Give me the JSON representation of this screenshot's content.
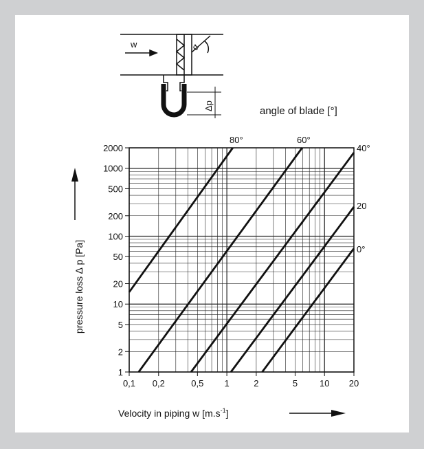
{
  "diagram": {
    "flow_label": "w",
    "angle_label": "α",
    "dp_label": "Δp"
  },
  "legend_title": "angle of blade  [°]",
  "chart_data": {
    "type": "line",
    "title": "",
    "xlabel_text": "Velocity in piping  w  [m.s",
    "xlabel_sup": "-1",
    "xlabel_close": "]",
    "ylabel": "pressure loss ∆ p  [Pa]",
    "xscale": "log",
    "yscale": "log",
    "xlim": [
      0.1,
      20
    ],
    "ylim": [
      1,
      2000
    ],
    "grid": true,
    "x_ticks": [
      {
        "value": 0.1,
        "label": "0,1"
      },
      {
        "value": 0.2,
        "label": "0,2"
      },
      {
        "value": 0.5,
        "label": "0,5"
      },
      {
        "value": 1,
        "label": "1"
      },
      {
        "value": 2,
        "label": "2"
      },
      {
        "value": 5,
        "label": "5"
      },
      {
        "value": 10,
        "label": "10"
      },
      {
        "value": 20,
        "label": "20"
      }
    ],
    "y_ticks": [
      {
        "value": 1,
        "label": "1"
      },
      {
        "value": 2,
        "label": "2"
      },
      {
        "value": 5,
        "label": "5"
      },
      {
        "value": 10,
        "label": "10"
      },
      {
        "value": 20,
        "label": "20"
      },
      {
        "value": 50,
        "label": "50"
      },
      {
        "value": 100,
        "label": "100"
      },
      {
        "value": 200,
        "label": "200"
      },
      {
        "value": 500,
        "label": "500"
      },
      {
        "value": 1000,
        "label": "1000"
      },
      {
        "value": 2000,
        "label": "2000"
      }
    ],
    "series": [
      {
        "name": "80°",
        "x": [
          0.1,
          1.15
        ],
        "y": [
          15,
          2000
        ]
      },
      {
        "name": "60°",
        "x": [
          0.125,
          5.9
        ],
        "y": [
          1,
          2000
        ]
      },
      {
        "name": "40°",
        "x": [
          0.43,
          20
        ],
        "y": [
          1,
          1700
        ]
      },
      {
        "name": "20",
        "x": [
          1.1,
          20
        ],
        "y": [
          1,
          270
        ]
      },
      {
        "name": "0°",
        "x": [
          2.3,
          20
        ],
        "y": [
          1,
          66
        ]
      }
    ]
  }
}
